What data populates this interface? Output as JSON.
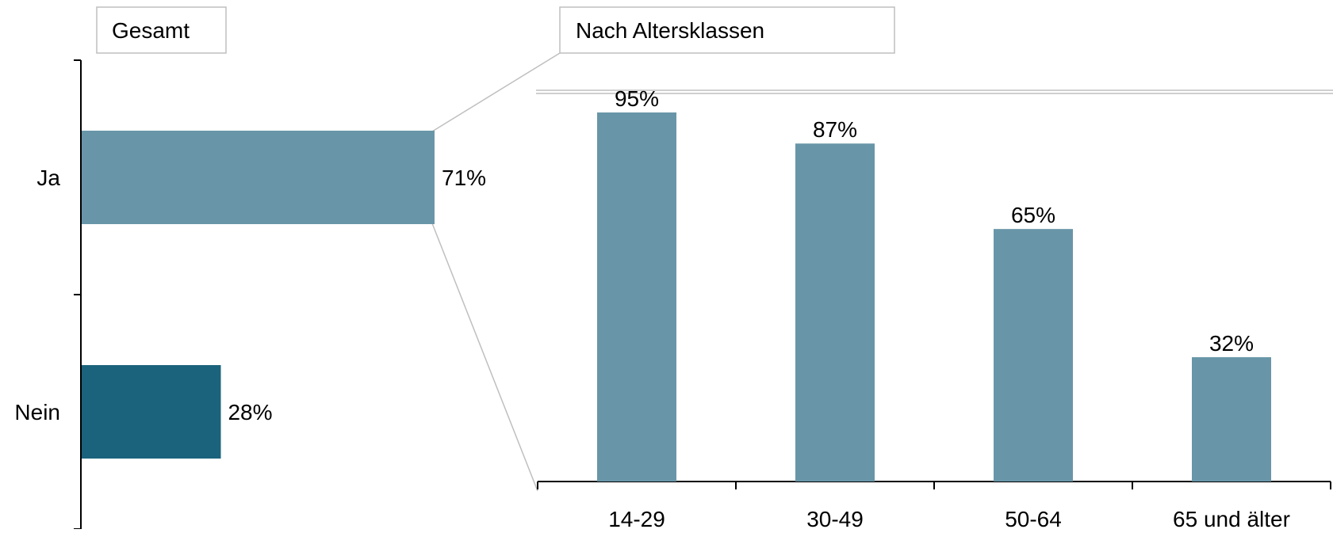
{
  "panels": {
    "left_label": "Gesamt",
    "right_label": "Nach Altersklassen"
  },
  "colors": {
    "bar_light": "#6896a8",
    "bar_dark": "#1b637c",
    "axis": "#000000",
    "connector": "#bfbfbf",
    "box_border": "#bfbfbf"
  },
  "chart_data": [
    {
      "type": "bar",
      "orientation": "horizontal",
      "panel_label": "Gesamt",
      "categories": [
        "Ja",
        "Nein"
      ],
      "values": [
        71,
        28
      ],
      "value_labels": [
        "71%",
        "28%"
      ],
      "bar_colors": [
        "#6896a8",
        "#1b637c"
      ],
      "xlim": [
        0,
        100
      ],
      "grid": false
    },
    {
      "type": "bar",
      "orientation": "vertical",
      "panel_label": "Nach Altersklassen",
      "categories": [
        "14-29",
        "30-49",
        "50-64",
        "65 und älter"
      ],
      "values": [
        95,
        87,
        65,
        32
      ],
      "value_labels": [
        "95%",
        "87%",
        "65%",
        "32%"
      ],
      "bar_color": "#6896a8",
      "ylim": [
        0,
        100
      ],
      "grid": false
    }
  ]
}
